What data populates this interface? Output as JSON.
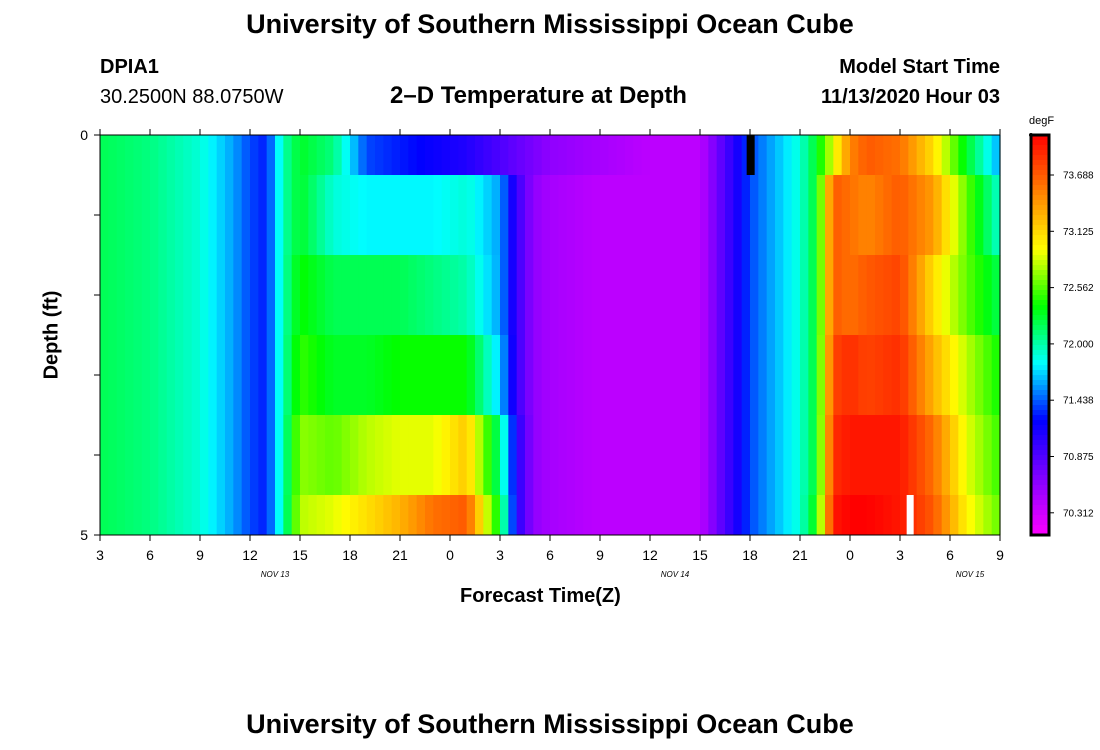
{
  "header": {
    "title": "University of Southern Mississippi Ocean Cube",
    "station": "DPIA1",
    "coords": "30.2500N 88.0750W",
    "subtitle": "2–D Temperature at Depth",
    "model_label": "Model Start Time",
    "model_time": "11/13/2020 Hour 03"
  },
  "footer": {
    "title": "University of Southern Mississippi Ocean Cube"
  },
  "chart_data": {
    "type": "heatmap",
    "xlabel": "Forecast Time(Z)",
    "ylabel": "Depth (ft)",
    "y_tick_labels": [
      "0",
      "5"
    ],
    "ylim": [
      0,
      5
    ],
    "x_tick_labels": [
      "3",
      "6",
      "9",
      "12",
      "15",
      "18",
      "21",
      "0",
      "3",
      "6",
      "9",
      "12",
      "15",
      "18",
      "21",
      "0",
      "3",
      "6",
      "9"
    ],
    "date_labels": [
      "NOV 13",
      "NOV 14",
      "NOV 15"
    ],
    "x_range_hours": [
      3,
      57
    ],
    "depth_levels": [
      0,
      0.5,
      1.5,
      2.5,
      3.5,
      4.5
    ],
    "colorbar": {
      "unit": "degF",
      "tick_labels": [
        "73.688",
        "73.125",
        "72.562",
        "72.000",
        "71.438",
        "70.875",
        "70.312"
      ],
      "range": [
        70.0,
        74.0
      ],
      "colors": [
        "#ff00ff",
        "#8000ff",
        "#0000ff",
        "#00ffff",
        "#00ff00",
        "#ffff00",
        "#ff8000",
        "#ff0000"
      ]
    },
    "temperature_profile": {
      "time_hours": [
        3,
        6,
        9,
        11,
        12,
        13,
        14,
        15,
        17,
        19,
        21,
        23,
        25,
        27,
        28,
        29,
        30,
        33,
        36,
        39,
        42,
        45,
        46,
        47,
        48,
        49,
        51,
        53,
        55,
        57
      ],
      "rows": [
        {
          "depth_band": "0-0.5",
          "values": [
            72.1,
            72.0,
            71.8,
            71.5,
            71.3,
            71.2,
            71.9,
            72.2,
            72.0,
            71.3,
            71.2,
            71.1,
            71.0,
            70.8,
            70.7,
            70.6,
            70.5,
            70.4,
            70.3,
            70.3,
            71.3,
            71.8,
            72.2,
            72.8,
            73.4,
            73.6,
            73.5,
            73.0,
            72.2,
            71.5
          ]
        },
        {
          "depth_band": "0.5-1.5",
          "values": [
            72.1,
            72.0,
            71.8,
            71.5,
            71.3,
            71.2,
            71.9,
            72.2,
            71.8,
            71.7,
            71.7,
            71.7,
            71.8,
            71.5,
            70.9,
            70.5,
            70.4,
            70.3,
            70.3,
            70.3,
            71.3,
            71.8,
            72.2,
            73.6,
            73.5,
            73.4,
            73.6,
            73.3,
            72.5,
            71.8
          ]
        },
        {
          "depth_band": "1.5-2.5",
          "values": [
            72.1,
            72.0,
            71.8,
            71.5,
            71.3,
            71.2,
            71.9,
            72.3,
            72.1,
            72.1,
            72.1,
            72.0,
            71.9,
            71.5,
            70.9,
            70.5,
            70.4,
            70.3,
            70.3,
            70.3,
            71.3,
            71.8,
            72.2,
            73.6,
            73.5,
            73.6,
            73.7,
            73.0,
            72.5,
            72.1
          ]
        },
        {
          "depth_band": "2.5-3.5",
          "values": [
            72.1,
            72.0,
            71.8,
            71.5,
            71.3,
            71.2,
            71.9,
            72.4,
            72.2,
            72.2,
            72.3,
            72.3,
            72.3,
            71.6,
            70.9,
            70.5,
            70.4,
            70.3,
            70.3,
            70.3,
            71.3,
            71.8,
            72.2,
            73.7,
            73.8,
            73.7,
            73.8,
            73.2,
            72.7,
            72.3
          ]
        },
        {
          "depth_band": "3.5-4.5",
          "values": [
            72.1,
            72.0,
            71.8,
            71.5,
            71.3,
            71.2,
            71.9,
            72.6,
            72.5,
            72.7,
            72.8,
            72.8,
            73.1,
            72.0,
            71.0,
            70.5,
            70.4,
            70.3,
            70.3,
            70.3,
            71.3,
            71.8,
            72.2,
            73.8,
            73.9,
            73.9,
            73.9,
            73.5,
            72.8,
            72.4
          ]
        },
        {
          "depth_band": "4.5-5",
          "values": [
            72.1,
            72.0,
            71.8,
            71.5,
            71.3,
            71.2,
            71.9,
            72.7,
            72.8,
            73.0,
            73.2,
            73.5,
            73.6,
            72.2,
            71.0,
            70.5,
            70.4,
            70.3,
            70.3,
            70.3,
            71.3,
            71.8,
            72.3,
            73.9,
            74.0,
            74.0,
            73.9,
            73.6,
            72.9,
            72.5
          ]
        }
      ]
    }
  }
}
